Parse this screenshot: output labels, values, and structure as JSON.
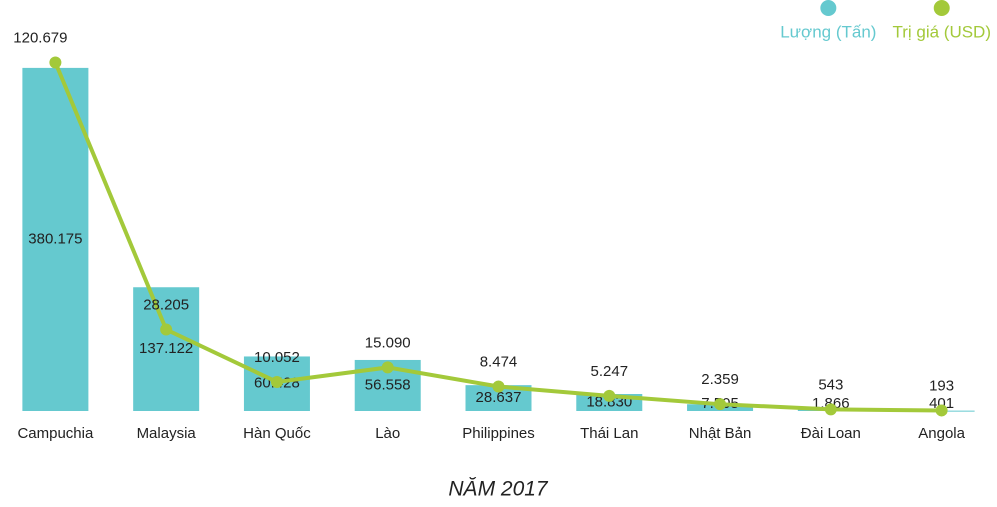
{
  "chart_data": {
    "type": "bar-line",
    "title": "NĂM 2017",
    "categories": [
      "Campuchia",
      "Malaysia",
      "Hàn Quốc",
      "Lào",
      "Philippines",
      "Thái Lan",
      "Nhật Bản",
      "Đài Loan",
      "Angola"
    ],
    "series": [
      {
        "name": "Lượng (Tấn)",
        "color": "#65c9cf",
        "type": "bar",
        "values": [
          380175,
          137122,
          60428,
          56558,
          28637,
          18830,
          7505,
          1866,
          401
        ],
        "value_labels": [
          "380.175",
          "137.122",
          "60.428",
          "56.558",
          "28.637",
          "18.830",
          "7.505",
          "1.866",
          "401"
        ]
      },
      {
        "name": "Trị giá (USD)",
        "color": "#a3c93a",
        "type": "line",
        "axis": "y2",
        "values": [
          120679,
          28205,
          10052,
          15090,
          8474,
          5247,
          2359,
          543,
          193
        ],
        "value_labels": [
          "120.679",
          "28.205",
          "10.052",
          "15.090",
          "8.474",
          "5.247",
          "2.359",
          "543",
          "193"
        ]
      }
    ],
    "ylim": [
      0,
      400000
    ],
    "y2lim": [
      0,
      125000
    ],
    "legend": "top-right"
  }
}
